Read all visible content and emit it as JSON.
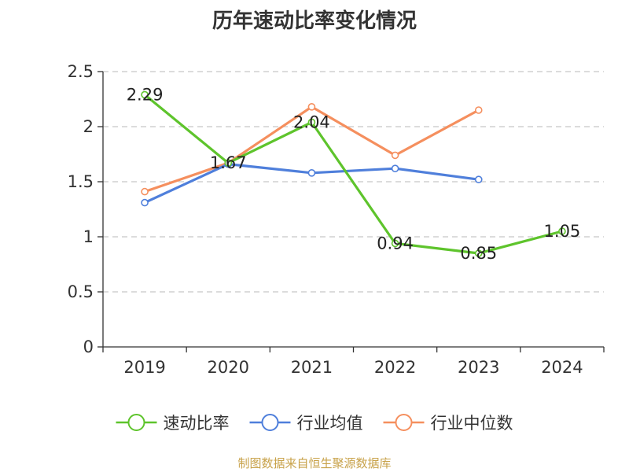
{
  "chart_data": {
    "type": "line",
    "title": "历年速动比率变化情况",
    "categories": [
      "2019",
      "2020",
      "2021",
      "2022",
      "2023",
      "2024"
    ],
    "ylim": [
      0,
      2.5
    ],
    "yticks": [
      "0",
      "0.5",
      "1",
      "1.5",
      "2",
      "2.5"
    ],
    "grid": true,
    "legend_position": "bottom",
    "series": [
      {
        "name": "速动比率",
        "color": "#5ec42c",
        "values": [
          2.29,
          1.67,
          2.04,
          0.94,
          0.85,
          1.05
        ],
        "labels": [
          "2.29",
          "1.67",
          "2.04",
          "0.94",
          "0.85",
          "1.05"
        ]
      },
      {
        "name": "行业均值",
        "color": "#4f7fdb",
        "values": [
          1.31,
          1.66,
          1.58,
          1.62,
          1.52,
          null
        ]
      },
      {
        "name": "行业中位数",
        "color": "#f58f5e",
        "values": [
          1.41,
          1.67,
          2.18,
          1.74,
          2.15,
          null
        ]
      }
    ]
  },
  "footer": {
    "source": "制图数据来自恒生聚源数据库"
  }
}
